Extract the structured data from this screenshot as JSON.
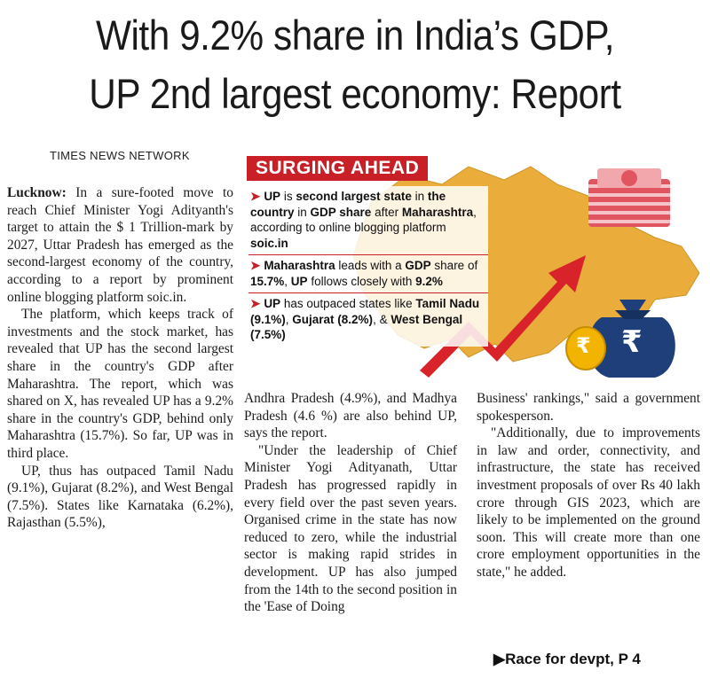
{
  "headline": {
    "line1": "With 9.2% share in India’s GDP,",
    "line2": "UP 2nd largest economy: Report"
  },
  "byline": "TIMES NEWS NETWORK",
  "col1": {
    "dateline": "Lucknow:",
    "p1": "In a sure-footed move to reach Chief Minister Yogi Adityanth's target to attain the $ 1 Trillion-mark by 2027, Uttar Pradesh has emerged as the second-largest economy of the country, according to a report by prominent online blogging platform soic.in.",
    "p2": "The platform, which keeps track of investments and the stock market, has revealed that UP has the second largest share in the country's GDP after Maharashtra. The report, which was shared on X, has revealed UP has a 9.2% share in the country's GDP, behind only Maharashtra (15.7%). So far, UP was in third place.",
    "p3": "UP, thus has outpaced Tamil Nadu (9.1%), Gujarat (8.2%), and West Bengal (7.5%). States like Karnataka (6.2%), Rajasthan (5.5%),"
  },
  "col2": {
    "p1": "Andhra Pradesh (4.9%), and Madhya Pradesh (4.6 %) are also behind UP, says the report.",
    "p2": "\"Under the leadership of Chief Minister Yogi Adityanath, Uttar Pradesh has progressed rapidly in every field over the past seven years. Organised crime in the state has now reduced to zero, while the industrial sector is making rapid strides in development. UP has also jumped from the 14th to the second position in the 'Ease of Doing"
  },
  "col3": {
    "p1": "Business' rankings,\" said a government spokesperson.",
    "p2": "\"Additionally, due to improvements in law and order, connectivity, and infrastructure, the state has received investment proposals of over Rs 40 lakh crore through GIS 2023, which are likely to be implemented on the ground soon. This will create more than one crore employment opportunities in the state,\" he added."
  },
  "infographic": {
    "title": "SURGING AHEAD",
    "bullet1": {
      "parts": [
        "UP",
        " is ",
        "second largest state",
        " in ",
        "the country",
        " in ",
        "GDP share",
        " after ",
        "Maharashtra",
        ", according to online blogging platform ",
        "soic.in"
      ]
    },
    "bullet2": {
      "parts": [
        "Maharashtra",
        " leads with a ",
        "GDP",
        " share of ",
        "15.7%",
        ", ",
        "UP",
        " follows closely with ",
        "9.2%"
      ]
    },
    "bullet3": {
      "parts": [
        "UP",
        " has outpaced states like ",
        "Tamil Nadu (9.1%)",
        ", ",
        "Gujarat (8.2%)",
        ", & ",
        "West Bengal (7.5%)"
      ]
    },
    "money_bag_symbol": "₹",
    "coin_symbol": "₹",
    "colors": {
      "title_bg": "#c91f26",
      "map_fill": "#e8a526",
      "arrow": "#d8232a",
      "bag": "#1f3f7a",
      "coin": "#f2b400",
      "notes": "#e05560"
    }
  },
  "jump": "▶Race for devpt, P 4"
}
